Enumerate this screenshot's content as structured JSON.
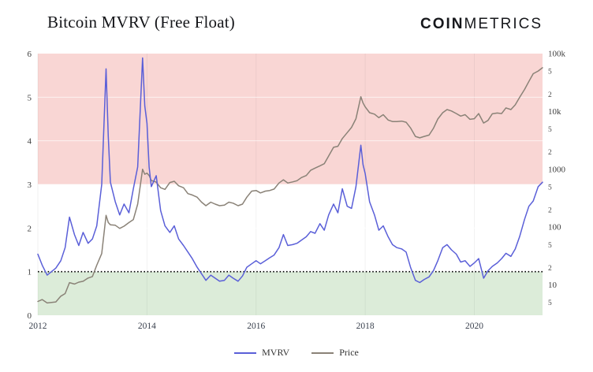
{
  "header": {
    "logo_bold": "COIN",
    "logo_light": "METRICS"
  },
  "chart_data": {
    "type": "line",
    "title": "Bitcoin MVRV (Free Float)",
    "xlim": [
      2012,
      2021.25
    ],
    "x_axis": {
      "ticks": [
        2012,
        2014,
        2016,
        2018,
        2020
      ]
    },
    "left_axis": {
      "min": 0,
      "max": 6,
      "ticks": [
        0,
        1,
        2,
        3,
        4,
        5,
        6
      ]
    },
    "right_axis": {
      "scale": "log",
      "min": 3,
      "max": 100000,
      "ticks": [
        {
          "label": "100k",
          "value": 100000
        },
        {
          "label": "5",
          "value": 50000,
          "minor": true
        },
        {
          "label": "2",
          "value": 20000,
          "minor": true
        },
        {
          "label": "10k",
          "value": 10000
        },
        {
          "label": "5",
          "value": 5000,
          "minor": true
        },
        {
          "label": "2",
          "value": 2000,
          "minor": true
        },
        {
          "label": "1000",
          "value": 1000
        },
        {
          "label": "5",
          "value": 500,
          "minor": true
        },
        {
          "label": "2",
          "value": 200,
          "minor": true
        },
        {
          "label": "100",
          "value": 100
        },
        {
          "label": "5",
          "value": 50,
          "minor": true
        },
        {
          "label": "2",
          "value": 20,
          "minor": true
        },
        {
          "label": "10",
          "value": 10
        },
        {
          "label": "5",
          "value": 5,
          "minor": true
        }
      ]
    },
    "bands": [
      {
        "name": "overvalued-band",
        "from": 3,
        "to": 6,
        "color": "#f9d6d4"
      },
      {
        "name": "undervalued-band",
        "from": 0,
        "to": 1,
        "color": "#dcecd9"
      }
    ],
    "reference_line": {
      "value": 1,
      "color": "#000000",
      "style": "dotted"
    },
    "legend": {
      "position": "bottom-center"
    },
    "series": [
      {
        "name": "MVRV",
        "axis": "left",
        "color": "#5a5fd8",
        "points": [
          [
            2012.0,
            1.4
          ],
          [
            2012.08,
            1.15
          ],
          [
            2012.17,
            0.92
          ],
          [
            2012.25,
            1.0
          ],
          [
            2012.33,
            1.08
          ],
          [
            2012.42,
            1.25
          ],
          [
            2012.5,
            1.55
          ],
          [
            2012.58,
            2.25
          ],
          [
            2012.67,
            1.85
          ],
          [
            2012.75,
            1.6
          ],
          [
            2012.83,
            1.9
          ],
          [
            2012.92,
            1.65
          ],
          [
            2013.0,
            1.75
          ],
          [
            2013.08,
            2.05
          ],
          [
            2013.17,
            3.0
          ],
          [
            2013.25,
            5.65
          ],
          [
            2013.29,
            4.1
          ],
          [
            2013.33,
            3.05
          ],
          [
            2013.42,
            2.6
          ],
          [
            2013.5,
            2.3
          ],
          [
            2013.58,
            2.55
          ],
          [
            2013.67,
            2.35
          ],
          [
            2013.75,
            2.9
          ],
          [
            2013.83,
            3.4
          ],
          [
            2013.92,
            5.9
          ],
          [
            2013.96,
            4.8
          ],
          [
            2014.0,
            4.4
          ],
          [
            2014.04,
            3.4
          ],
          [
            2014.08,
            2.95
          ],
          [
            2014.17,
            3.2
          ],
          [
            2014.25,
            2.4
          ],
          [
            2014.33,
            2.05
          ],
          [
            2014.42,
            1.9
          ],
          [
            2014.5,
            2.05
          ],
          [
            2014.58,
            1.75
          ],
          [
            2014.67,
            1.6
          ],
          [
            2014.75,
            1.45
          ],
          [
            2014.83,
            1.3
          ],
          [
            2014.92,
            1.1
          ],
          [
            2015.0,
            0.95
          ],
          [
            2015.08,
            0.8
          ],
          [
            2015.17,
            0.92
          ],
          [
            2015.25,
            0.85
          ],
          [
            2015.33,
            0.78
          ],
          [
            2015.42,
            0.8
          ],
          [
            2015.5,
            0.92
          ],
          [
            2015.58,
            0.85
          ],
          [
            2015.67,
            0.78
          ],
          [
            2015.75,
            0.9
          ],
          [
            2015.83,
            1.1
          ],
          [
            2015.92,
            1.18
          ],
          [
            2016.0,
            1.25
          ],
          [
            2016.08,
            1.18
          ],
          [
            2016.17,
            1.25
          ],
          [
            2016.25,
            1.32
          ],
          [
            2016.33,
            1.38
          ],
          [
            2016.42,
            1.55
          ],
          [
            2016.5,
            1.85
          ],
          [
            2016.58,
            1.6
          ],
          [
            2016.67,
            1.62
          ],
          [
            2016.75,
            1.65
          ],
          [
            2016.83,
            1.72
          ],
          [
            2016.92,
            1.8
          ],
          [
            2017.0,
            1.92
          ],
          [
            2017.08,
            1.88
          ],
          [
            2017.17,
            2.1
          ],
          [
            2017.25,
            1.95
          ],
          [
            2017.33,
            2.3
          ],
          [
            2017.42,
            2.55
          ],
          [
            2017.5,
            2.35
          ],
          [
            2017.58,
            2.9
          ],
          [
            2017.67,
            2.5
          ],
          [
            2017.75,
            2.45
          ],
          [
            2017.83,
            2.95
          ],
          [
            2017.92,
            3.9
          ],
          [
            2017.96,
            3.45
          ],
          [
            2018.0,
            3.25
          ],
          [
            2018.08,
            2.6
          ],
          [
            2018.17,
            2.3
          ],
          [
            2018.25,
            1.95
          ],
          [
            2018.33,
            2.05
          ],
          [
            2018.42,
            1.8
          ],
          [
            2018.5,
            1.62
          ],
          [
            2018.58,
            1.55
          ],
          [
            2018.67,
            1.52
          ],
          [
            2018.75,
            1.45
          ],
          [
            2018.83,
            1.1
          ],
          [
            2018.92,
            0.8
          ],
          [
            2019.0,
            0.75
          ],
          [
            2019.08,
            0.82
          ],
          [
            2019.17,
            0.88
          ],
          [
            2019.25,
            1.02
          ],
          [
            2019.33,
            1.25
          ],
          [
            2019.42,
            1.55
          ],
          [
            2019.5,
            1.62
          ],
          [
            2019.58,
            1.5
          ],
          [
            2019.67,
            1.4
          ],
          [
            2019.75,
            1.22
          ],
          [
            2019.83,
            1.25
          ],
          [
            2019.92,
            1.12
          ],
          [
            2020.0,
            1.2
          ],
          [
            2020.08,
            1.3
          ],
          [
            2020.17,
            0.85
          ],
          [
            2020.25,
            1.02
          ],
          [
            2020.33,
            1.12
          ],
          [
            2020.42,
            1.2
          ],
          [
            2020.5,
            1.3
          ],
          [
            2020.58,
            1.42
          ],
          [
            2020.67,
            1.35
          ],
          [
            2020.75,
            1.52
          ],
          [
            2020.83,
            1.8
          ],
          [
            2020.92,
            2.2
          ],
          [
            2021.0,
            2.5
          ],
          [
            2021.08,
            2.62
          ],
          [
            2021.17,
            2.95
          ],
          [
            2021.25,
            3.05
          ]
        ]
      },
      {
        "name": "Price",
        "axis": "right",
        "color": "#8a8277",
        "points": [
          [
            2012.0,
            5.2
          ],
          [
            2012.08,
            5.6
          ],
          [
            2012.17,
            4.9
          ],
          [
            2012.25,
            5.0
          ],
          [
            2012.33,
            5.1
          ],
          [
            2012.42,
            6.4
          ],
          [
            2012.5,
            7.1
          ],
          [
            2012.58,
            11.0
          ],
          [
            2012.67,
            10.4
          ],
          [
            2012.75,
            11.2
          ],
          [
            2012.83,
            11.6
          ],
          [
            2012.92,
            13.2
          ],
          [
            2013.0,
            14.0
          ],
          [
            2013.08,
            22.0
          ],
          [
            2013.17,
            35.0
          ],
          [
            2013.25,
            160.0
          ],
          [
            2013.29,
            120.0
          ],
          [
            2013.33,
            110.0
          ],
          [
            2013.42,
            108.0
          ],
          [
            2013.5,
            95.0
          ],
          [
            2013.58,
            104.0
          ],
          [
            2013.67,
            120.0
          ],
          [
            2013.75,
            135.0
          ],
          [
            2013.83,
            250.0
          ],
          [
            2013.92,
            1000.0
          ],
          [
            2013.96,
            820.0
          ],
          [
            2014.0,
            860.0
          ],
          [
            2014.04,
            780.0
          ],
          [
            2014.08,
            640.0
          ],
          [
            2014.17,
            600.0
          ],
          [
            2014.25,
            480.0
          ],
          [
            2014.33,
            450.0
          ],
          [
            2014.42,
            590.0
          ],
          [
            2014.5,
            620.0
          ],
          [
            2014.58,
            520.0
          ],
          [
            2014.67,
            480.0
          ],
          [
            2014.75,
            380.0
          ],
          [
            2014.83,
            360.0
          ],
          [
            2014.92,
            330.0
          ],
          [
            2015.0,
            270.0
          ],
          [
            2015.08,
            235.0
          ],
          [
            2015.17,
            270.0
          ],
          [
            2015.25,
            250.0
          ],
          [
            2015.33,
            235.0
          ],
          [
            2015.42,
            240.0
          ],
          [
            2015.5,
            270.0
          ],
          [
            2015.58,
            260.0
          ],
          [
            2015.67,
            235.0
          ],
          [
            2015.75,
            250.0
          ],
          [
            2015.83,
            330.0
          ],
          [
            2015.92,
            420.0
          ],
          [
            2016.0,
            430.0
          ],
          [
            2016.08,
            390.0
          ],
          [
            2016.17,
            420.0
          ],
          [
            2016.25,
            430.0
          ],
          [
            2016.33,
            455.0
          ],
          [
            2016.42,
            580.0
          ],
          [
            2016.5,
            660.0
          ],
          [
            2016.58,
            580.0
          ],
          [
            2016.67,
            605.0
          ],
          [
            2016.75,
            635.0
          ],
          [
            2016.83,
            720.0
          ],
          [
            2016.92,
            780.0
          ],
          [
            2017.0,
            960.0
          ],
          [
            2017.08,
            1050.0
          ],
          [
            2017.17,
            1150.0
          ],
          [
            2017.25,
            1250.0
          ],
          [
            2017.33,
            1700.0
          ],
          [
            2017.42,
            2400.0
          ],
          [
            2017.5,
            2500.0
          ],
          [
            2017.58,
            3400.0
          ],
          [
            2017.67,
            4300.0
          ],
          [
            2017.75,
            5300.0
          ],
          [
            2017.83,
            7500.0
          ],
          [
            2017.92,
            18000.0
          ],
          [
            2017.96,
            14000.0
          ],
          [
            2018.0,
            12000.0
          ],
          [
            2018.08,
            9500.0
          ],
          [
            2018.17,
            9000.0
          ],
          [
            2018.25,
            7800.0
          ],
          [
            2018.33,
            8800.0
          ],
          [
            2018.42,
            7100.0
          ],
          [
            2018.5,
            6700.0
          ],
          [
            2018.58,
            6700.0
          ],
          [
            2018.67,
            6800.0
          ],
          [
            2018.75,
            6500.0
          ],
          [
            2018.83,
            5200.0
          ],
          [
            2018.92,
            3700.0
          ],
          [
            2019.0,
            3500.0
          ],
          [
            2019.08,
            3700.0
          ],
          [
            2019.17,
            3900.0
          ],
          [
            2019.25,
            5100.0
          ],
          [
            2019.33,
            7400.0
          ],
          [
            2019.42,
            9500.0
          ],
          [
            2019.5,
            10800.0
          ],
          [
            2019.58,
            10200.0
          ],
          [
            2019.67,
            9200.0
          ],
          [
            2019.75,
            8300.0
          ],
          [
            2019.83,
            8800.0
          ],
          [
            2019.92,
            7300.0
          ],
          [
            2020.0,
            7500.0
          ],
          [
            2020.08,
            9200.0
          ],
          [
            2020.17,
            6300.0
          ],
          [
            2020.25,
            7000.0
          ],
          [
            2020.33,
            9100.0
          ],
          [
            2020.42,
            9400.0
          ],
          [
            2020.5,
            9200.0
          ],
          [
            2020.58,
            11500.0
          ],
          [
            2020.67,
            10800.0
          ],
          [
            2020.75,
            13000.0
          ],
          [
            2020.83,
            17500.0
          ],
          [
            2020.92,
            24000.0
          ],
          [
            2021.0,
            33000.0
          ],
          [
            2021.08,
            45000.0
          ],
          [
            2021.17,
            50000.0
          ],
          [
            2021.25,
            57000.0
          ]
        ]
      }
    ]
  }
}
